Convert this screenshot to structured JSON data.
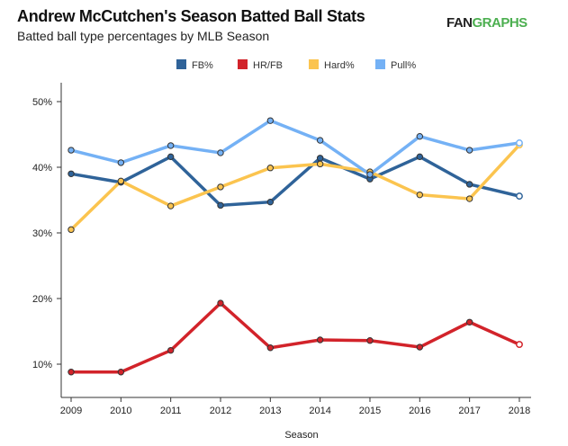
{
  "header": {
    "title": "Andrew McCutchen's Season Batted Ball Stats",
    "subtitle": "Batted ball type percentages by MLB Season",
    "logo": {
      "prefix": "FAN",
      "suffix": "GRAPHS"
    }
  },
  "chart_data": {
    "type": "line",
    "title": "Andrew McCutchen's Season Batted Ball Stats",
    "subtitle": "Batted ball type percentages by MLB Season",
    "xlabel": "Season",
    "ylabel": "",
    "x": [
      2009,
      2010,
      2011,
      2012,
      2013,
      2014,
      2015,
      2016,
      2017,
      2018
    ],
    "x_tick_labels": [
      "2009",
      "2010",
      "2011",
      "2012",
      "2013",
      "2014",
      "2015",
      "2016",
      "2017",
      "2018"
    ],
    "y_ticks": [
      10,
      20,
      30,
      40,
      50
    ],
    "y_tick_labels": [
      "10%",
      "20%",
      "30%",
      "40%",
      "50%"
    ],
    "ylim": [
      5,
      53
    ],
    "grid": false,
    "legend_position": "top-center",
    "series": [
      {
        "name": "FB%",
        "color": "#2f6399",
        "values": [
          39.0,
          37.7,
          41.6,
          34.2,
          34.7,
          41.4,
          38.2,
          41.6,
          37.4,
          35.6
        ]
      },
      {
        "name": "HR/FB",
        "color": "#d2232a",
        "values": [
          8.8,
          8.8,
          12.1,
          19.3,
          12.5,
          13.7,
          13.6,
          12.6,
          16.4,
          13.0
        ]
      },
      {
        "name": "Hard%",
        "color": "#fbc44f",
        "values": [
          30.5,
          37.9,
          34.1,
          37.0,
          39.9,
          40.5,
          39.3,
          35.8,
          35.2,
          43.4
        ]
      },
      {
        "name": "Pull%",
        "color": "#74b1f5",
        "values": [
          42.6,
          40.7,
          43.3,
          42.2,
          47.1,
          44.1,
          38.9,
          44.7,
          42.6,
          43.7
        ]
      }
    ]
  }
}
